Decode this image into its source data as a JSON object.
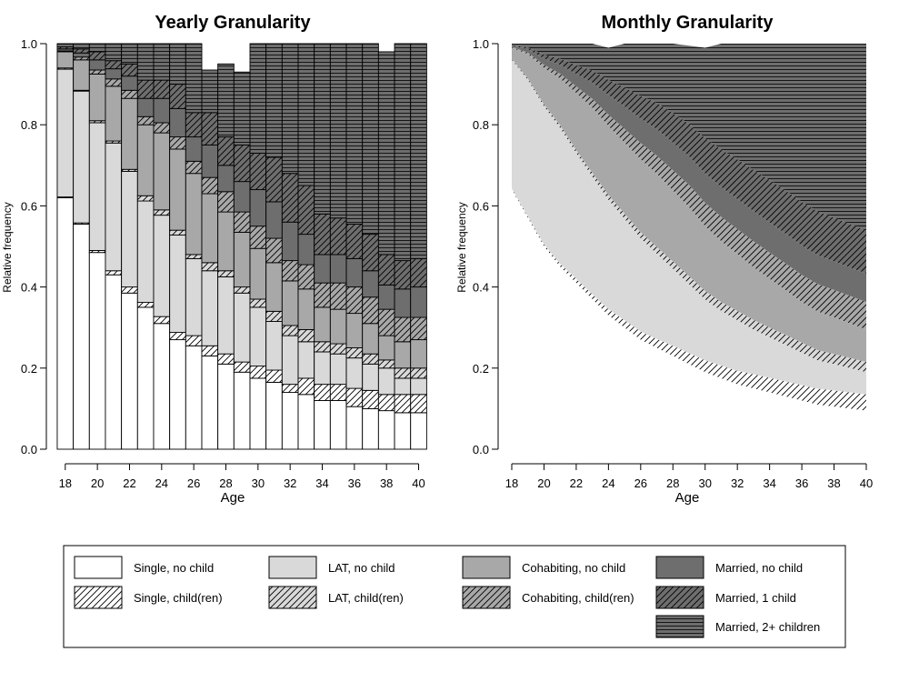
{
  "legend": {
    "items": [
      {
        "label": "Single, no child",
        "fill": "#ffffff",
        "pattern": "none"
      },
      {
        "label": "Single, child(ren)",
        "fill": "#ffffff",
        "pattern": "hatch"
      },
      {
        "label": "LAT, no child",
        "fill": "#d9d9d9",
        "pattern": "none"
      },
      {
        "label": "LAT, child(ren)",
        "fill": "#d9d9d9",
        "pattern": "hatch"
      },
      {
        "label": "Cohabiting, no child",
        "fill": "#a8a8a8",
        "pattern": "none"
      },
      {
        "label": "Cohabiting, child(ren)",
        "fill": "#a8a8a8",
        "pattern": "hatch"
      },
      {
        "label": "Married, no child",
        "fill": "#6e6e6e",
        "pattern": "none"
      },
      {
        "label": "Married, 1 child",
        "fill": "#6e6e6e",
        "pattern": "hatch"
      },
      {
        "label": "Married, 2+ children",
        "fill": "#6e6e6e",
        "pattern": "hlines"
      }
    ]
  },
  "chart_data": [
    {
      "type": "bar",
      "stacked": true,
      "title": "Yearly Granularity",
      "xlabel": "Age",
      "ylabel": "Relative frequency",
      "xticks": [
        "18",
        "20",
        "22",
        "24",
        "26",
        "28",
        "30",
        "32",
        "34",
        "36",
        "38",
        "40"
      ],
      "yticks": [
        "0.0",
        "0.2",
        "0.4",
        "0.6",
        "0.8",
        "1.0"
      ],
      "ylim": [
        0,
        1
      ],
      "categories": [
        18,
        19,
        20,
        21,
        22,
        23,
        24,
        25,
        26,
        27,
        28,
        29,
        30,
        31,
        32,
        33,
        34,
        35,
        36,
        37,
        38,
        39,
        40
      ],
      "series": [
        {
          "name": "Single, no child",
          "values": [
            0.62,
            0.555,
            0.485,
            0.43,
            0.385,
            0.35,
            0.31,
            0.27,
            0.255,
            0.23,
            0.21,
            0.19,
            0.175,
            0.165,
            0.14,
            0.135,
            0.12,
            0.12,
            0.105,
            0.1,
            0.095,
            0.09,
            0.09
          ]
        },
        {
          "name": "Single, child(ren)",
          "values": [
            0.002,
            0.003,
            0.005,
            0.01,
            0.015,
            0.012,
            0.017,
            0.018,
            0.025,
            0.025,
            0.025,
            0.025,
            0.03,
            0.03,
            0.02,
            0.04,
            0.04,
            0.04,
            0.045,
            0.045,
            0.04,
            0.045,
            0.045
          ]
        },
        {
          "name": "LAT, no child",
          "values": [
            0.315,
            0.325,
            0.315,
            0.315,
            0.285,
            0.25,
            0.25,
            0.24,
            0.19,
            0.185,
            0.19,
            0.17,
            0.145,
            0.12,
            0.12,
            0.09,
            0.08,
            0.075,
            0.075,
            0.065,
            0.065,
            0.04,
            0.04
          ]
        },
        {
          "name": "LAT, child(ren)",
          "values": [
            0.003,
            0.002,
            0.005,
            0.005,
            0.005,
            0.013,
            0.013,
            0.012,
            0.01,
            0.02,
            0.015,
            0.015,
            0.02,
            0.025,
            0.025,
            0.03,
            0.025,
            0.025,
            0.025,
            0.025,
            0.02,
            0.025,
            0.025
          ]
        },
        {
          "name": "Cohabiting, no child",
          "values": [
            0.04,
            0.075,
            0.115,
            0.135,
            0.175,
            0.175,
            0.19,
            0.2,
            0.2,
            0.17,
            0.145,
            0.135,
            0.125,
            0.12,
            0.11,
            0.1,
            0.085,
            0.085,
            0.085,
            0.075,
            0.06,
            0.065,
            0.07
          ]
        },
        {
          "name": "Cohabiting, child(ren)",
          "values": [
            0.002,
            0.007,
            0.01,
            0.018,
            0.02,
            0.02,
            0.025,
            0.03,
            0.03,
            0.04,
            0.05,
            0.05,
            0.055,
            0.06,
            0.05,
            0.06,
            0.06,
            0.065,
            0.065,
            0.065,
            0.065,
            0.06,
            0.055
          ]
        },
        {
          "name": "Married, no child",
          "values": [
            0.005,
            0.01,
            0.025,
            0.025,
            0.035,
            0.045,
            0.06,
            0.07,
            0.06,
            0.08,
            0.065,
            0.075,
            0.09,
            0.09,
            0.095,
            0.075,
            0.07,
            0.07,
            0.07,
            0.065,
            0.06,
            0.07,
            0.075
          ]
        },
        {
          "name": "Married, 1 child",
          "values": [
            0.005,
            0.01,
            0.02,
            0.02,
            0.03,
            0.045,
            0.045,
            0.06,
            0.06,
            0.08,
            0.07,
            0.09,
            0.09,
            0.11,
            0.12,
            0.12,
            0.1,
            0.09,
            0.085,
            0.09,
            0.075,
            0.07,
            0.07
          ]
        },
        {
          "name": "Married, 2+ children",
          "values": [
            0.008,
            0.013,
            0.02,
            0.042,
            0.05,
            0.09,
            0.09,
            0.1,
            0.17,
            0.105,
            0.18,
            0.18,
            0.27,
            0.28,
            0.32,
            0.35,
            0.42,
            0.43,
            0.445,
            0.47,
            0.5,
            0.535,
            0.53
          ]
        }
      ]
    },
    {
      "type": "area",
      "stacked": true,
      "title": "Monthly Granularity",
      "xlabel": "Age",
      "ylabel": "Relative frequency",
      "xticks": [
        "18",
        "20",
        "22",
        "24",
        "26",
        "28",
        "30",
        "32",
        "34",
        "36",
        "38",
        "40"
      ],
      "yticks": [
        "0.0",
        "0.2",
        "0.4",
        "0.6",
        "0.8",
        "1.0"
      ],
      "ylim": [
        0,
        1
      ],
      "x": [
        18,
        19,
        20,
        21,
        22,
        23,
        24,
        25,
        26,
        27,
        28,
        29,
        30,
        31,
        32,
        33,
        34,
        35,
        36,
        37,
        38,
        39,
        40
      ],
      "series": [
        {
          "name": "Single, no child",
          "values": [
            0.64,
            0.57,
            0.5,
            0.45,
            0.41,
            0.37,
            0.33,
            0.3,
            0.27,
            0.25,
            0.23,
            0.21,
            0.19,
            0.175,
            0.16,
            0.15,
            0.14,
            0.13,
            0.12,
            0.11,
            0.105,
            0.1,
            0.095
          ]
        },
        {
          "name": "Single, child(ren)",
          "values": [
            0.003,
            0.004,
            0.005,
            0.007,
            0.01,
            0.012,
            0.015,
            0.018,
            0.02,
            0.022,
            0.025,
            0.027,
            0.029,
            0.031,
            0.033,
            0.035,
            0.036,
            0.037,
            0.038,
            0.039,
            0.04,
            0.04,
            0.04
          ]
        },
        {
          "name": "LAT, no child",
          "values": [
            0.317,
            0.336,
            0.34,
            0.335,
            0.31,
            0.29,
            0.27,
            0.25,
            0.23,
            0.21,
            0.19,
            0.17,
            0.15,
            0.135,
            0.125,
            0.11,
            0.1,
            0.09,
            0.08,
            0.07,
            0.065,
            0.06,
            0.055
          ]
        },
        {
          "name": "LAT, child(ren)",
          "values": [
            0.003,
            0.004,
            0.005,
            0.007,
            0.008,
            0.01,
            0.012,
            0.013,
            0.015,
            0.017,
            0.018,
            0.02,
            0.021,
            0.022,
            0.023,
            0.024,
            0.024,
            0.025,
            0.025,
            0.025,
            0.025,
            0.025,
            0.025
          ]
        },
        {
          "name": "Cohabiting, no child",
          "values": [
            0.027,
            0.06,
            0.09,
            0.115,
            0.14,
            0.16,
            0.17,
            0.175,
            0.18,
            0.18,
            0.175,
            0.17,
            0.16,
            0.15,
            0.14,
            0.13,
            0.12,
            0.11,
            0.1,
            0.095,
            0.09,
            0.085,
            0.08
          ]
        },
        {
          "name": "Cohabiting, child(ren)",
          "values": [
            0.002,
            0.004,
            0.008,
            0.012,
            0.017,
            0.022,
            0.028,
            0.034,
            0.04,
            0.045,
            0.05,
            0.055,
            0.058,
            0.06,
            0.062,
            0.064,
            0.065,
            0.066,
            0.067,
            0.068,
            0.068,
            0.068,
            0.068
          ]
        },
        {
          "name": "Married, no child",
          "values": [
            0.003,
            0.008,
            0.015,
            0.022,
            0.03,
            0.04,
            0.048,
            0.055,
            0.06,
            0.065,
            0.068,
            0.07,
            0.072,
            0.073,
            0.074,
            0.074,
            0.074,
            0.073,
            0.072,
            0.071,
            0.07,
            0.07,
            0.07
          ]
        },
        {
          "name": "Married, 1 child",
          "values": [
            0.002,
            0.005,
            0.01,
            0.015,
            0.022,
            0.03,
            0.038,
            0.047,
            0.056,
            0.065,
            0.073,
            0.08,
            0.087,
            0.093,
            0.098,
            0.102,
            0.105,
            0.107,
            0.108,
            0.108,
            0.108,
            0.107,
            0.106
          ]
        },
        {
          "name": "Married, 2+ children",
          "values": [
            0.003,
            0.009,
            0.027,
            0.037,
            0.053,
            0.066,
            0.079,
            0.108,
            0.129,
            0.146,
            0.171,
            0.193,
            0.223,
            0.261,
            0.285,
            0.311,
            0.336,
            0.362,
            0.39,
            0.414,
            0.429,
            0.445,
            0.461
          ]
        }
      ]
    }
  ]
}
